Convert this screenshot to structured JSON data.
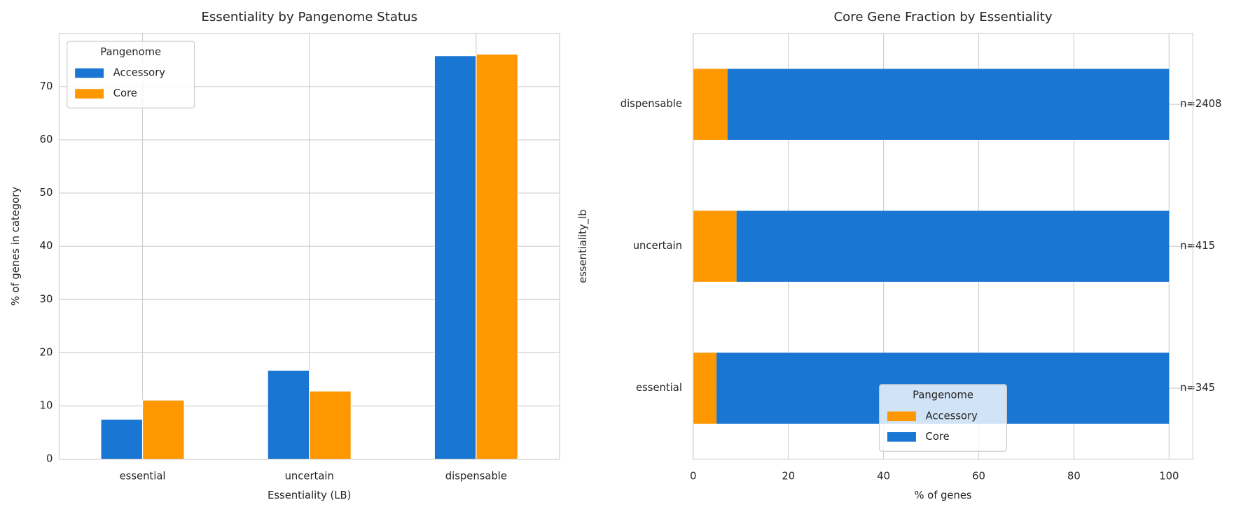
{
  "chart_data": [
    {
      "type": "bar",
      "title": "Essentiality by Pangenome Status",
      "xlabel": "Essentiality (LB)",
      "ylabel": "% of genes in category",
      "categories": [
        "essential",
        "uncertain",
        "dispensable"
      ],
      "series": [
        {
          "name": "Accessory",
          "color": "#1976d2",
          "values": [
            7.5,
            16.7,
            75.8
          ]
        },
        {
          "name": "Core",
          "color": "#ff9800",
          "values": [
            11.1,
            12.8,
            76.1
          ]
        }
      ],
      "ylim": [
        0,
        80
      ],
      "yticks": [
        0,
        10,
        20,
        30,
        40,
        50,
        60,
        70
      ],
      "grid": true,
      "legend_title": "Pangenome",
      "legend": "upper left"
    },
    {
      "type": "stacked_barh",
      "title": "Core Gene Fraction by Essentiality",
      "xlabel": "% of genes",
      "ylabel": "essentiality_lb",
      "categories": [
        "essential",
        "uncertain",
        "dispensable"
      ],
      "series": [
        {
          "name": "Accessory",
          "color": "#ff9800",
          "values": [
            4.9,
            9.1,
            7.2
          ]
        },
        {
          "name": "Core",
          "color": "#1976d2",
          "values": [
            95.1,
            90.9,
            92.8
          ]
        }
      ],
      "annotations": [
        "n=345",
        "n=415",
        "n=2408"
      ],
      "xlim": [
        0,
        105
      ],
      "xticks": [
        0,
        20,
        40,
        60,
        80,
        100
      ],
      "grid": true,
      "legend_title": "Pangenome",
      "legend": "lower center"
    }
  ]
}
